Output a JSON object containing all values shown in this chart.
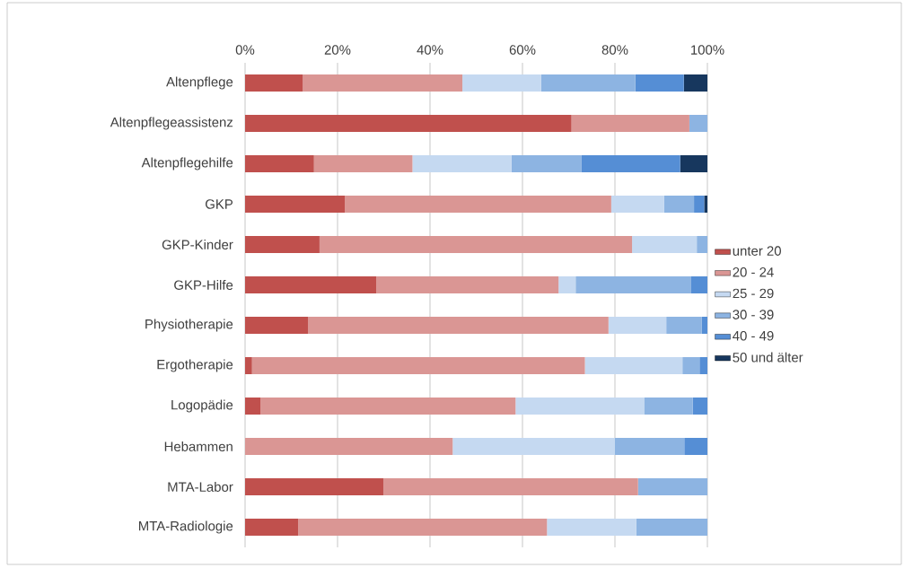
{
  "chart_data": {
    "type": "bar",
    "orientation": "horizontal",
    "stacked": true,
    "grid": "x",
    "legend": "right",
    "categories": [
      "Altenpflege",
      "Altenpflegeassistenz",
      "Altenpflegehilfe",
      "GKP",
      "GKP-Kinder",
      "GKP-Hilfe",
      "Physiotherapie",
      "Ergotherapie",
      "Logopädie",
      "Hebammen",
      "MTA-Labor",
      "MTA-Radiologie"
    ],
    "xlim": [
      0,
      100
    ],
    "xticks": [
      {
        "value": 0,
        "label": "0%"
      },
      {
        "value": 20,
        "label": "20%"
      },
      {
        "value": 40,
        "label": "40%"
      },
      {
        "value": 60,
        "label": "60%"
      },
      {
        "value": 80,
        "label": "80%"
      },
      {
        "value": 100,
        "label": "100%"
      }
    ],
    "series": [
      {
        "name": "unter 20",
        "color": "#c0504d",
        "values": [
          12.5,
          70.6,
          14.9,
          21.6,
          16.1,
          28.4,
          13.6,
          1.5,
          3.3,
          0,
          29.9,
          11.5
        ]
      },
      {
        "name": "20 - 24",
        "color": "#da9694",
        "values": [
          34.5,
          25.5,
          21.3,
          57.6,
          67.6,
          39.4,
          65.0,
          72.0,
          55.2,
          44.9,
          55.1,
          53.8
        ]
      },
      {
        "name": "25 - 29",
        "color": "#c5d9f1",
        "values": [
          17.0,
          0,
          21.4,
          11.4,
          14.0,
          3.7,
          12.5,
          21.1,
          27.8,
          35.1,
          0,
          19.3
        ]
      },
      {
        "name": "30 - 39",
        "color": "#8db4e2",
        "values": [
          20.4,
          3.9,
          15.1,
          6.5,
          2.3,
          25.0,
          7.7,
          3.7,
          10.5,
          15.0,
          15.0,
          15.4
        ]
      },
      {
        "name": "40 - 49",
        "color": "#558ed5",
        "values": [
          10.5,
          0,
          21.4,
          2.2,
          0,
          3.5,
          1.2,
          1.7,
          3.2,
          5.0,
          0,
          0
        ]
      },
      {
        "name": "50 und älter",
        "color": "#17375e",
        "values": [
          5.1,
          0,
          5.9,
          0.7,
          0,
          0,
          0,
          0,
          0,
          0,
          0,
          0
        ]
      }
    ]
  }
}
